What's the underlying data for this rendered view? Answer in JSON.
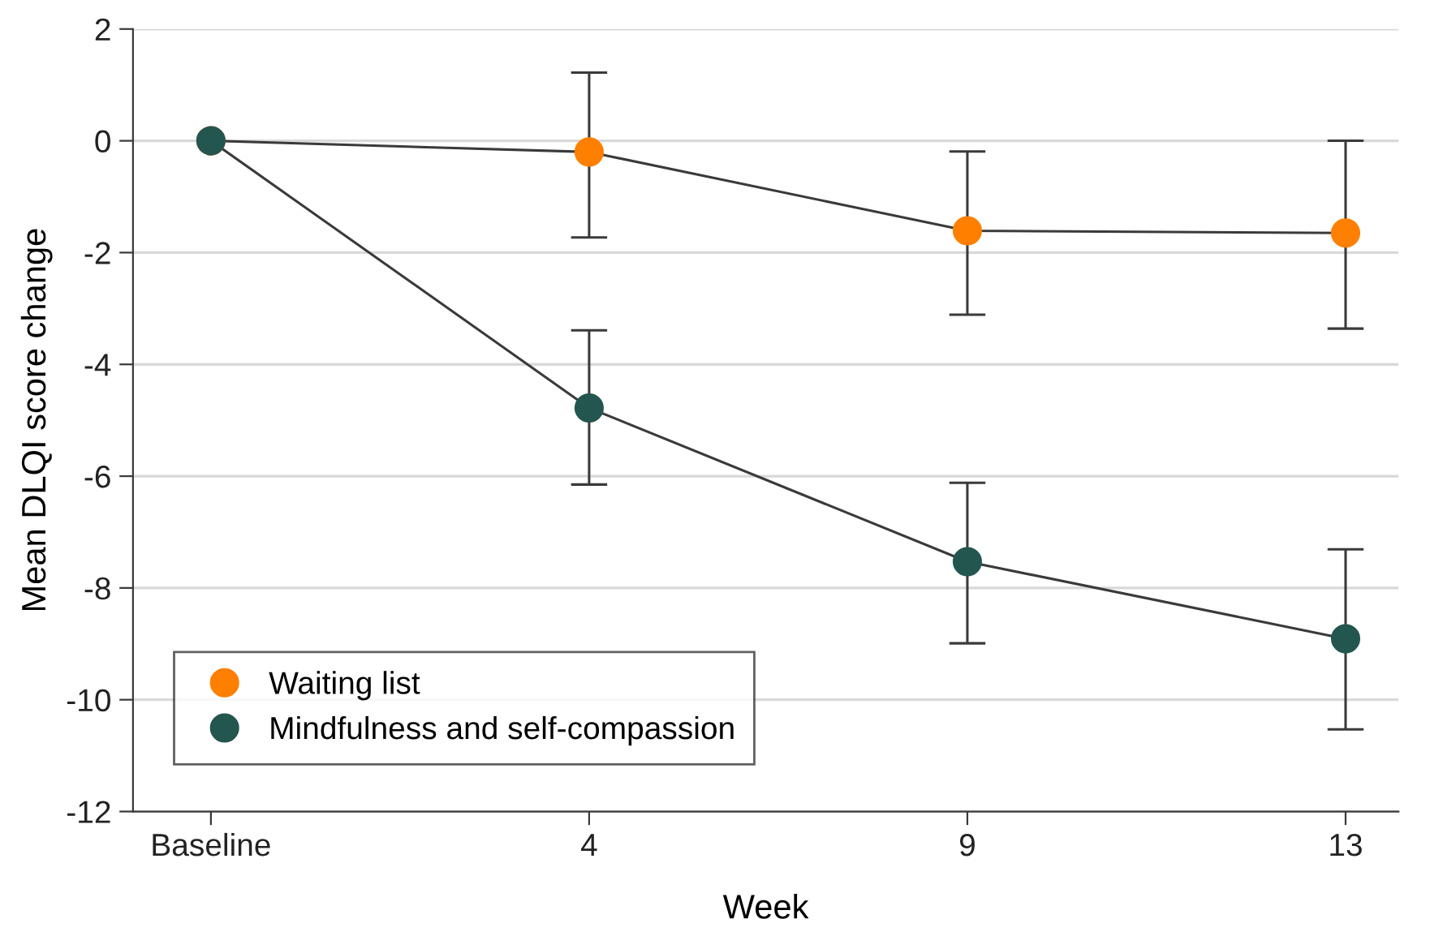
{
  "chart_data": {
    "type": "line",
    "xlabel": "Week",
    "ylabel": "Mean DLQI score change",
    "categories": [
      "Baseline",
      "4",
      "9",
      "13"
    ],
    "series": [
      {
        "name": "Waiting list",
        "color": "#ff7f00",
        "values": [
          0,
          -0.2,
          -1.61,
          -1.65
        ],
        "errors": [
          null,
          [
            -1.73,
            1.22
          ],
          [
            -3.11,
            -0.19
          ],
          [
            -3.36,
            0
          ]
        ]
      },
      {
        "name": "Mindfulness and self-compassion",
        "color": "#245650",
        "values": [
          0,
          -4.78,
          -7.53,
          -8.91
        ],
        "errors": [
          null,
          [
            -6.15,
            -3.39
          ],
          [
            -8.99,
            -6.12
          ],
          [
            -10.53,
            -7.31
          ]
        ]
      }
    ],
    "ylim": [
      -12,
      2
    ],
    "yticks": [
      {
        "value": -12,
        "label": "-12"
      },
      {
        "value": -10,
        "label": "-10"
      },
      {
        "value": -8,
        "label": "-8"
      },
      {
        "value": -6,
        "label": "-6"
      },
      {
        "value": -4,
        "label": "-4"
      },
      {
        "value": -2,
        "label": "-2"
      },
      0,
      2
    ],
    "grid": "y",
    "legend": "bottom left",
    "marker": "circle",
    "line_style": "solid"
  }
}
